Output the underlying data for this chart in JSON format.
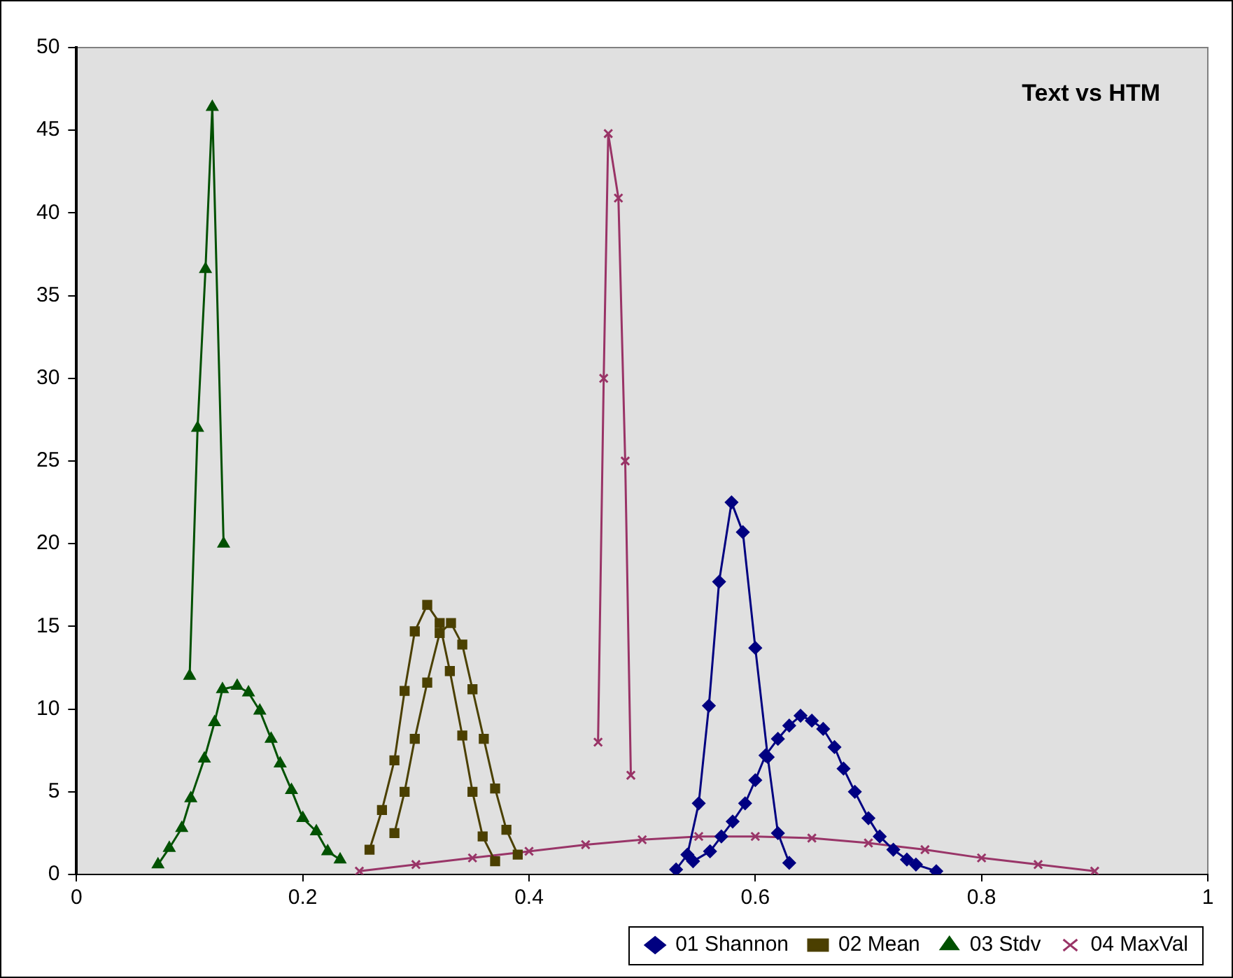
{
  "chart_data": {
    "type": "line",
    "title": "Text vs HTM",
    "xlim": [
      0,
      1
    ],
    "ylim": [
      0,
      50
    ],
    "xticks": [
      0,
      0.2,
      0.4,
      0.6,
      0.8,
      1
    ],
    "yticks": [
      0,
      5,
      10,
      15,
      20,
      25,
      30,
      35,
      40,
      45,
      50
    ],
    "grid": false,
    "legend": "bottom",
    "line_style": "solid",
    "series": [
      {
        "name": "01 Shannon",
        "color": "#000080",
        "marker": "diamond",
        "x": [
          0.53,
          0.54,
          0.55,
          0.559,
          0.568,
          0.579,
          0.589,
          0.6,
          0.611,
          0.62,
          0.63
        ],
        "values": [
          0.3,
          1.2,
          4.3,
          10.2,
          17.7,
          22.5,
          20.7,
          13.7,
          7.1,
          2.5,
          0.7
        ]
      },
      {
        "color": "#000082",
        "marker": "diamond",
        "x": [
          0.545,
          0.56,
          0.57,
          0.58,
          0.591,
          0.6,
          0.609,
          0.62,
          0.63,
          0.64,
          0.65,
          0.66,
          0.67,
          0.678,
          0.688,
          0.7,
          0.71,
          0.722,
          0.734,
          0.742,
          0.76
        ],
        "values": [
          0.8,
          1.4,
          2.3,
          3.2,
          4.3,
          5.7,
          7.2,
          8.2,
          9.0,
          9.6,
          9.3,
          8.8,
          7.7,
          6.4,
          5.0,
          3.4,
          2.3,
          1.5,
          0.9,
          0.6,
          0.2
        ]
      },
      {
        "name": "02 Mean",
        "color": "#4b3f00",
        "marker": "square",
        "x": [
          0.259,
          0.27,
          0.281,
          0.29,
          0.299,
          0.31,
          0.321,
          0.33,
          0.341,
          0.35,
          0.359,
          0.37
        ],
        "values": [
          1.5,
          3.9,
          6.9,
          11.1,
          14.7,
          16.3,
          15.2,
          12.3,
          8.4,
          5.0,
          2.3,
          0.8
        ]
      },
      {
        "color": "#4b4102",
        "marker": "square",
        "x": [
          0.281,
          0.29,
          0.299,
          0.31,
          0.321,
          0.331,
          0.341,
          0.35,
          0.36,
          0.37,
          0.38,
          0.39
        ],
        "values": [
          2.5,
          5.0,
          8.2,
          11.6,
          14.6,
          15.2,
          13.9,
          11.2,
          8.2,
          5.2,
          2.7,
          1.2
        ]
      },
      {
        "name": "03 Stdv",
        "color": "#005000",
        "marker": "triangle",
        "x": [
          0.1,
          0.107,
          0.114,
          0.12,
          0.13
        ],
        "values": [
          12,
          27,
          36.6,
          46.4,
          20
        ]
      },
      {
        "color": "#025202",
        "marker": "triangle",
        "x": [
          0.072,
          0.082,
          0.093,
          0.101,
          0.113,
          0.122,
          0.129,
          0.142,
          0.152,
          0.162,
          0.172,
          0.18,
          0.19,
          0.2,
          0.212,
          0.222,
          0.233
        ],
        "values": [
          0.6,
          1.6,
          2.8,
          4.6,
          7,
          9.2,
          11.2,
          11.4,
          11,
          9.9,
          8.2,
          6.7,
          5.1,
          3.4,
          2.6,
          1.4,
          0.9
        ]
      },
      {
        "name": "04 MaxVal",
        "color": "#993366",
        "marker": "cross",
        "x": [
          0.461,
          0.466,
          0.47,
          0.479,
          0.485,
          0.49
        ],
        "values": [
          8.0,
          30,
          44.8,
          40.9,
          25,
          6.0
        ]
      },
      {
        "color": "#993568",
        "marker": "cross",
        "x": [
          0.25,
          0.3,
          0.35,
          0.4,
          0.45,
          0.5,
          0.55,
          0.6,
          0.65,
          0.7,
          0.75,
          0.8,
          0.85,
          0.9
        ],
        "values": [
          0.2,
          0.6,
          1.0,
          1.4,
          1.8,
          2.1,
          2.3,
          2.3,
          2.2,
          1.9,
          1.5,
          1.0,
          0.6,
          0.2
        ]
      }
    ]
  }
}
